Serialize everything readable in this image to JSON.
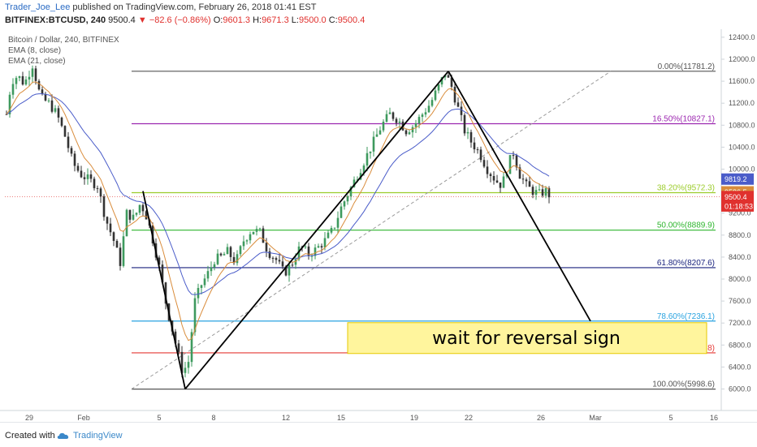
{
  "header": {
    "author": "Trader_Joe_Lee",
    "published_text": "published on TradingView.com, February 26, 2018 01:41 EST",
    "symbol": "BITFINEX:BTCUSD, 240",
    "last": "9500.4",
    "change": "−82.6 (−0.86%)",
    "ohlc_o": "9601.3",
    "ohlc_h": "9671.3",
    "ohlc_l": "9500.0",
    "ohlc_c": "9500.4"
  },
  "legend": {
    "title": "Bitcoin / Dollar, 240, BITFINEX",
    "ema1": "EMA (8, close)",
    "ema2": "EMA (21, close)"
  },
  "footer": {
    "created_with": "Created with",
    "brand": "TradingView"
  },
  "colors": {
    "up": "#3e9a5e",
    "down": "#333333",
    "ema8": "#d98c3b",
    "ema21": "#4a5cc9",
    "accent": "#2a6bc4"
  },
  "chart_data": {
    "type": "candlestick",
    "title": "Bitcoin / Dollar, 240, BITFINEX",
    "ylim": [
      5800,
      12500
    ],
    "y_ticks": [
      6000,
      6400,
      6800,
      7200,
      7600,
      8000,
      8400,
      8800,
      9200,
      9600,
      10000,
      10400,
      10800,
      11200,
      11600,
      12000,
      12400
    ],
    "x_tick_labels": [
      "29",
      "Feb",
      "5",
      "8",
      "12",
      "15",
      "19",
      "22",
      "26",
      "Mar",
      "5",
      "16"
    ],
    "fib_levels": [
      {
        "label": "0.00%(11781.2)",
        "value": 11781.2,
        "color": "#555555"
      },
      {
        "label": "16.50%(10827.1)",
        "value": 10827.1,
        "color": "#9c27b0"
      },
      {
        "label": "38.20%(9572.3)",
        "value": 9572.3,
        "color": "#9ccc2c"
      },
      {
        "label": "50.00%(8889.9)",
        "value": 8889.9,
        "color": "#2db52d"
      },
      {
        "label": "61.80%(8207.6)",
        "value": 8207.6,
        "color": "#1a237e"
      },
      {
        "label": "78.60%(7236.1)",
        "value": 7236.1,
        "color": "#29a3e0"
      },
      {
        "label": "88.60%(6657.8)",
        "value": 6657.8,
        "color": "#e53935"
      },
      {
        "label": "100.00%(5998.6)",
        "value": 5998.6,
        "color": "#555555"
      }
    ],
    "price_labels": [
      {
        "text": "9819.2",
        "value": 9819.2,
        "color": "#4a5cc9"
      },
      {
        "text": "9586.5",
        "value": 9586.5,
        "color": "#d98c3b"
      },
      {
        "text": "9500.4",
        "value": 9500.4,
        "color": "#e0312e"
      },
      {
        "text": "01:18:53",
        "value": 9330,
        "color": "#e0312e"
      }
    ],
    "annotation": "wait for reversal sign",
    "series": [
      {
        "name": "EMA (8, close)"
      },
      {
        "name": "EMA (21, close)"
      }
    ]
  }
}
